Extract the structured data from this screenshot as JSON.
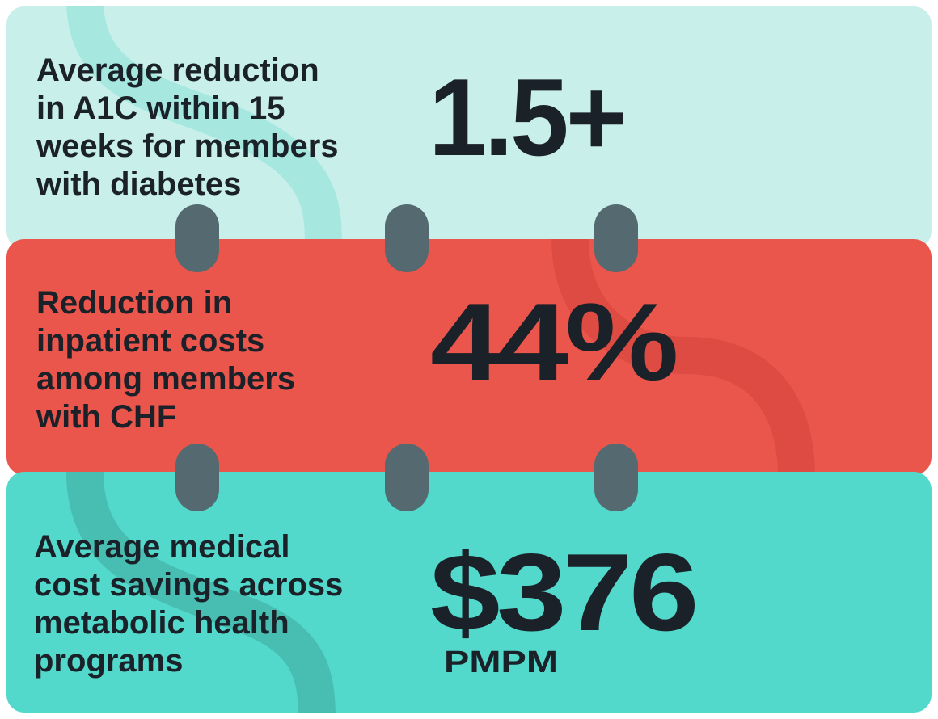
{
  "cards": [
    {
      "description": [
        "Average reduction",
        "in A1C within 15",
        "weeks for members",
        "with diabetes"
      ],
      "stat": "1.5+"
    },
    {
      "description": [
        "Reduction in",
        "inpatient costs",
        "among members",
        "with CHF"
      ],
      "stat": "44%"
    },
    {
      "description": [
        "Average medical",
        "cost savings across",
        "metabolic health",
        "programs"
      ],
      "stat": "$376",
      "unit": "PMPM"
    }
  ]
}
